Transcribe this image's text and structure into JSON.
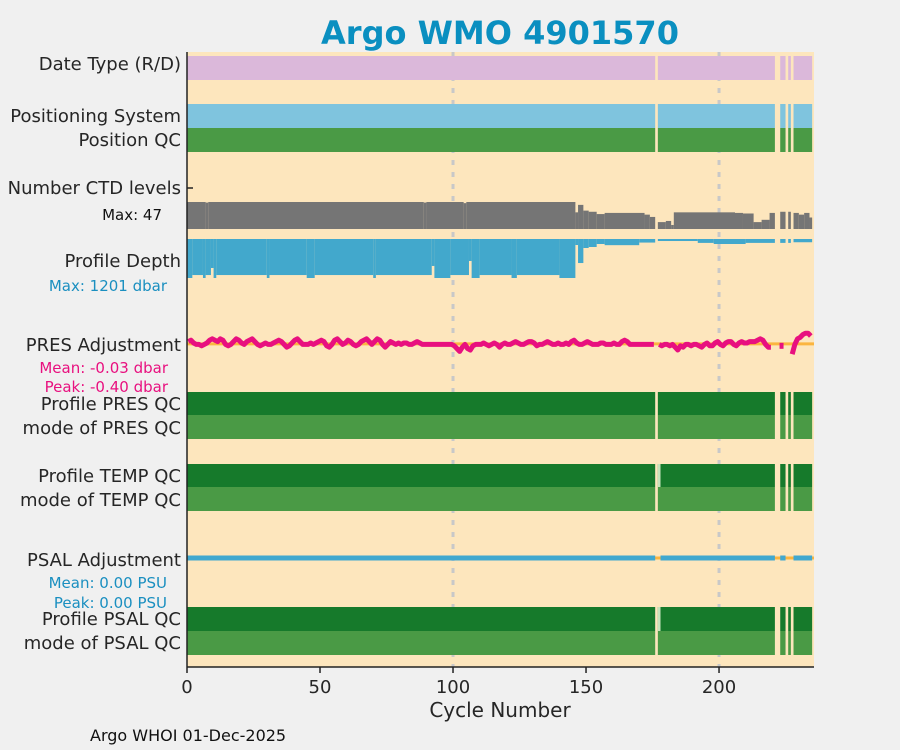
{
  "chart_data": {
    "type": "bar",
    "title": "Argo WMO 4901570",
    "xlabel": "Cycle Number",
    "xlim": [
      0,
      235.7
    ],
    "xticks": [
      0,
      50,
      100,
      150,
      200
    ],
    "grid_x": [
      100,
      200
    ],
    "first_cycle": 1,
    "last_cycle": 235,
    "missing_cycles": [
      177,
      222,
      223,
      226,
      228
    ],
    "colors": {
      "background": "#fde6bd",
      "title": "#0a8fc0",
      "date_type": "#dbb8da",
      "positioning": "#7fc4de",
      "qc_good": "#4a9a45",
      "qc_dark": "#167a2b",
      "qc_pale": "#c6e2bb",
      "ctd": "#757575",
      "depth": "#42a8cc",
      "pres": "#e8107f",
      "psal": "#41a8cf",
      "mean_line": "#fbb540",
      "grid": "#c8c8c8"
    },
    "rows": {
      "date_type": {
        "label": "Date Type (R/D)"
      },
      "positioning": {
        "label": "Positioning System"
      },
      "position_qc": {
        "label": "Position QC"
      },
      "ctd_levels": {
        "label": "Number CTD levels",
        "sub": "Max: 47",
        "max": 47,
        "runs": [
          [
            1,
            7,
            47
          ],
          [
            8,
            8,
            46
          ],
          [
            9,
            89,
            47
          ],
          [
            90,
            90,
            46
          ],
          [
            91,
            104,
            47
          ],
          [
            105,
            105,
            45
          ],
          [
            106,
            146,
            47
          ],
          [
            147,
            147,
            29
          ],
          [
            148,
            149,
            42
          ],
          [
            150,
            151,
            32
          ],
          [
            152,
            154,
            30
          ],
          [
            155,
            157,
            26
          ],
          [
            158,
            172,
            28
          ],
          [
            173,
            174,
            25
          ],
          [
            175,
            176,
            21
          ],
          [
            178,
            180,
            12
          ],
          [
            181,
            182,
            14
          ],
          [
            183,
            183,
            7
          ],
          [
            184,
            206,
            29
          ],
          [
            207,
            209,
            28
          ],
          [
            210,
            213,
            27
          ],
          [
            214,
            216,
            12
          ],
          [
            217,
            219,
            16
          ],
          [
            220,
            221,
            28
          ],
          [
            224,
            225,
            30
          ],
          [
            227,
            227,
            30
          ],
          [
            229,
            230,
            28
          ],
          [
            231,
            232,
            25
          ],
          [
            233,
            234,
            28
          ],
          [
            235,
            235,
            20
          ]
        ]
      },
      "profile_depth": {
        "label": "Profile Depth",
        "sub": "Max: 1201 dbar",
        "max": 1201,
        "runs": [
          [
            1,
            2,
            1201
          ],
          [
            3,
            6,
            1110
          ],
          [
            7,
            7,
            1201
          ],
          [
            8,
            9,
            1110
          ],
          [
            10,
            10,
            893
          ],
          [
            11,
            11,
            1201
          ],
          [
            12,
            30,
            1110
          ],
          [
            31,
            31,
            1201
          ],
          [
            32,
            45,
            1110
          ],
          [
            46,
            48,
            1201
          ],
          [
            49,
            70,
            1110
          ],
          [
            71,
            71,
            1201
          ],
          [
            72,
            92,
            1110
          ],
          [
            93,
            93,
            830
          ],
          [
            94,
            99,
            1201
          ],
          [
            100,
            106,
            1110
          ],
          [
            107,
            107,
            677
          ],
          [
            108,
            110,
            1201
          ],
          [
            111,
            122,
            1110
          ],
          [
            123,
            124,
            1201
          ],
          [
            125,
            140,
            1110
          ],
          [
            141,
            146,
            1201
          ],
          [
            147,
            147,
            185
          ],
          [
            148,
            149,
            740
          ],
          [
            150,
            151,
            277
          ],
          [
            152,
            154,
            246
          ],
          [
            155,
            157,
            154
          ],
          [
            158,
            170,
            190
          ],
          [
            171,
            176,
            110
          ],
          [
            178,
            192,
            62
          ],
          [
            193,
            198,
            120
          ],
          [
            199,
            210,
            154
          ],
          [
            211,
            221,
            120
          ],
          [
            224,
            225,
            120
          ],
          [
            227,
            227,
            120
          ],
          [
            229,
            235,
            100
          ]
        ]
      },
      "pres_adjustment": {
        "label": "PRES Adjustment",
        "mean_text": "Mean: -0.03 dbar",
        "peak_text": "Peak: -0.40 dbar",
        "mean": -0.03,
        "values": [
          0.05,
          0.1,
          0.0,
          -0.05,
          -0.05,
          -0.1,
          -0.05,
          0.0,
          0.1,
          0.15,
          0.1,
          0.05,
          0.15,
          0.1,
          -0.05,
          -0.1,
          -0.05,
          0.05,
          0.15,
          0.1,
          0.0,
          -0.05,
          0.05,
          0.1,
          0.15,
          0.05,
          -0.05,
          -0.1,
          -0.05,
          0.0,
          -0.05,
          -0.05,
          0.0,
          0.05,
          0.1,
          0.05,
          -0.05,
          -0.15,
          -0.1,
          0.0,
          0.1,
          0.15,
          0.05,
          -0.05,
          -0.05,
          -0.05,
          0.0,
          -0.05,
          0.0,
          0.05,
          0.1,
          0.05,
          -0.1,
          -0.15,
          -0.05,
          0.1,
          0.15,
          0.05,
          -0.05,
          0.0,
          0.1,
          0.05,
          -0.05,
          -0.1,
          -0.05,
          0.05,
          0.1,
          0.15,
          0.05,
          -0.05,
          0.05,
          0.15,
          0.1,
          -0.05,
          -0.15,
          -0.05,
          0.05,
          0.0,
          -0.05,
          0.0,
          -0.05,
          0.0,
          0.0,
          -0.05,
          -0.05,
          0.0,
          0.05,
          0.0,
          -0.05,
          -0.05,
          -0.05,
          -0.05,
          -0.05,
          -0.05,
          -0.05,
          -0.05,
          -0.05,
          -0.05,
          -0.05,
          -0.05,
          -0.1,
          -0.2,
          -0.3,
          -0.15,
          -0.05,
          -0.2,
          -0.25,
          -0.1,
          -0.05,
          -0.05,
          -0.05,
          0.0,
          -0.05,
          -0.1,
          -0.05,
          0.0,
          -0.05,
          -0.15,
          -0.05,
          0.0,
          -0.05,
          -0.05,
          0.0,
          0.05,
          0.0,
          -0.05,
          -0.05,
          0.0,
          0.05,
          0.05,
          0.0,
          -0.1,
          -0.05,
          -0.05,
          0.0,
          0.05,
          0.0,
          -0.05,
          -0.05,
          0.0,
          -0.05,
          -0.05,
          0.0,
          -0.05,
          0.05,
          0.1,
          0.0,
          -0.05,
          -0.05,
          0.0,
          0.05,
          0.0,
          -0.05,
          -0.05,
          -0.05,
          0.0,
          0.0,
          -0.05,
          -0.05,
          -0.05,
          0.0,
          -0.05,
          -0.05,
          0.05,
          0.1,
          0.05,
          -0.05,
          -0.05,
          -0.05,
          -0.05,
          -0.05,
          -0.05,
          -0.05,
          -0.05,
          -0.05,
          -0.05,
          null,
          -0.05,
          -0.1,
          -0.05,
          -0.05,
          -0.1,
          -0.05,
          -0.15,
          -0.25,
          -0.1,
          -0.15,
          -0.05,
          -0.05,
          -0.1,
          -0.05,
          -0.05,
          -0.1,
          -0.15,
          -0.05,
          0.0,
          -0.1,
          -0.1,
          0.0,
          0.05,
          -0.05,
          -0.1,
          0.0,
          0.05,
          0.05,
          -0.05,
          -0.1,
          0.0,
          0.05,
          0.0,
          0.0,
          0.05,
          0.05,
          0.05,
          0.1,
          0.15,
          0.1,
          -0.05,
          -0.15,
          -0.15,
          null,
          null,
          null,
          -0.1,
          null,
          null,
          null,
          -0.4,
          -0.05,
          0.15,
          0.2,
          0.3,
          0.35,
          0.35,
          0.25
        ]
      },
      "profile_pres_qc": {
        "label": "Profile PRES QC"
      },
      "mode_pres_qc": {
        "label": "mode of PRES QC"
      },
      "profile_temp_qc": {
        "label": "Profile TEMP QC",
        "pale_cycles": [
          178
        ]
      },
      "mode_temp_qc": {
        "label": "mode of TEMP QC"
      },
      "psal_adjustment": {
        "label": "PSAL Adjustment",
        "mean_text": "Mean: 0.00 PSU",
        "peak_text": "Peak: 0.00 PSU",
        "mean": 0.0,
        "missing_cycles": [
          177,
          178,
          222,
          223,
          226,
          227,
          228
        ]
      },
      "profile_psal_qc": {
        "label": "Profile PSAL QC",
        "pale_cycles": [
          178
        ]
      },
      "mode_psal_qc": {
        "label": "mode of PSAL QC"
      }
    }
  },
  "footer": "Argo WHOI 01-Dec-2025"
}
